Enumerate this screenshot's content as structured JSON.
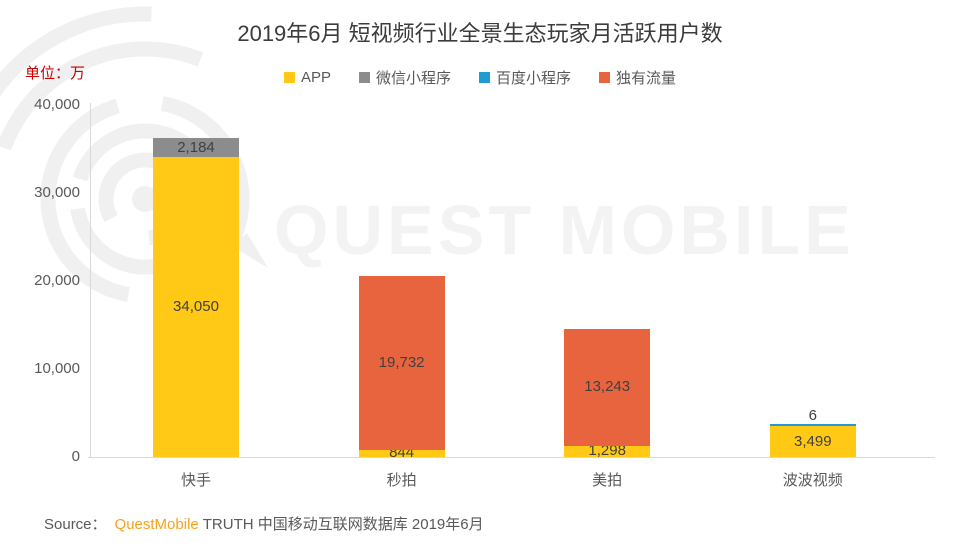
{
  "title": "2019年6月 短视频行业全景生态玩家月活跃用户数",
  "unit_label": "单位：万",
  "unit_color": "#CC0000",
  "watermark": {
    "text": "QUEST MOBILE"
  },
  "legend": [
    {
      "key": "app",
      "label": "APP",
      "color": "#FFC916"
    },
    {
      "key": "wechat-mini-program",
      "label": "微信小程序",
      "color": "#8C8C8C"
    },
    {
      "key": "baidu-mini-program",
      "label": "百度小程序",
      "color": "#1F9CD4"
    },
    {
      "key": "exclusive-traffic",
      "label": "独有流量",
      "color": "#E8643F"
    }
  ],
  "source": {
    "prefix": "Source：",
    "brand": "QuestMobile",
    "brand_color": "#F9A11B",
    "suffix": "TRUTH 中国移动互联网数据库 2019年6月"
  },
  "chart_data": {
    "type": "bar",
    "stacked": true,
    "unit": "万",
    "title": "2019年6月 短视频行业全景生态玩家月活跃用户数",
    "categories": [
      "快手",
      "秒拍",
      "美拍",
      "波波视频"
    ],
    "category_keys": [
      "kuaishou",
      "miaopai",
      "meipai",
      "bobo-video"
    ],
    "series_colors": {
      "APP": "#FFC916",
      "微信小程序": "#8C8C8C",
      "百度小程序": "#1F9CD4",
      "独有流量": "#E8643F"
    },
    "series_keys": {
      "APP": "app",
      "微信小程序": "wechat-mini-program",
      "百度小程序": "baidu-mini-program",
      "独有流量": "exclusive-traffic"
    },
    "stacks": [
      [
        {
          "series": "APP",
          "value": 34050
        },
        {
          "series": "微信小程序",
          "value": 2184
        }
      ],
      [
        {
          "series": "APP",
          "value": 844
        },
        {
          "series": "独有流量",
          "value": 19732
        }
      ],
      [
        {
          "series": "APP",
          "value": 1298
        },
        {
          "series": "独有流量",
          "value": 13243
        }
      ],
      [
        {
          "series": "APP",
          "value": 3499
        },
        {
          "series": "百度小程序",
          "value": 6
        }
      ]
    ],
    "y_ticks": [
      "40,000",
      "30,000",
      "20,000",
      "10,000",
      "0"
    ],
    "ylim": [
      0,
      40000
    ],
    "xlabel": "",
    "ylabel": "",
    "grid": false,
    "legend_position": "top"
  }
}
